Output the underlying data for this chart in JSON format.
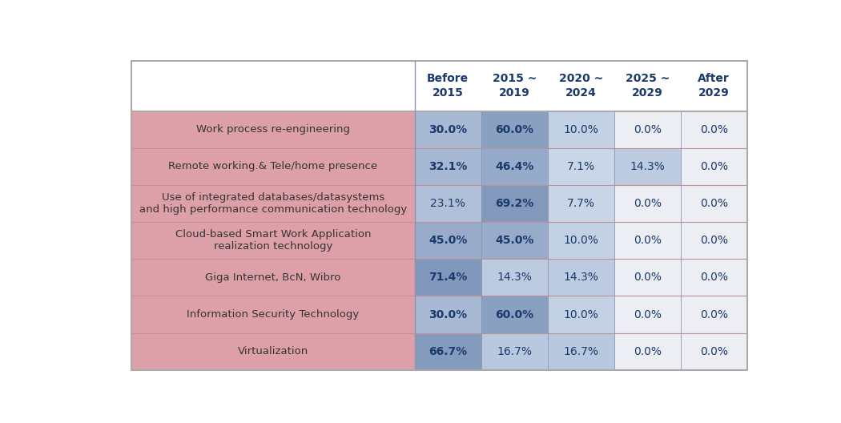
{
  "columns": [
    "Before\n2015",
    "2015 ~\n2019",
    "2020 ~\n2024",
    "2025 ~\n2029",
    "After\n2029"
  ],
  "rows": [
    {
      "label": "Work process re-engineering",
      "values": [
        30.0,
        60.0,
        10.0,
        0.0,
        0.0
      ]
    },
    {
      "label": "Remote working.& Tele/home presence",
      "values": [
        32.1,
        46.4,
        7.1,
        14.3,
        0.0
      ]
    },
    {
      "label": "Use of integrated databases/datasystems\nand high performance communication technology",
      "values": [
        23.1,
        69.2,
        7.7,
        0.0,
        0.0
      ]
    },
    {
      "label": "Cloud-based Smart Work Application\nrealization technology",
      "values": [
        45.0,
        45.0,
        10.0,
        0.0,
        0.0
      ]
    },
    {
      "label": "Giga Internet, BcN, Wibro",
      "values": [
        71.4,
        14.3,
        14.3,
        0.0,
        0.0
      ]
    },
    {
      "label": "Information Security Technology",
      "values": [
        30.0,
        60.0,
        10.0,
        0.0,
        0.0
      ]
    },
    {
      "label": "Virtualization",
      "values": [
        66.7,
        16.7,
        16.7,
        0.0,
        0.0
      ]
    }
  ],
  "row_label_bg": "#dea0a8",
  "header_text_color": "#1a3a6b",
  "cell_text_color": "#1a3a6b",
  "row_label_text_color": "#333333",
  "outer_border_color": "#aaaaaa",
  "row_divider_color": "#c09098",
  "col_divider_color": "#9090b0",
  "header_fontsize": 10,
  "cell_fontsize": 10,
  "label_fontsize": 9.5,
  "background_color": "#ffffff",
  "blue_dark": [
    0.42,
    0.52,
    0.68
  ],
  "blue_light": [
    0.88,
    0.92,
    0.97
  ],
  "zero_color": "#eceef4"
}
